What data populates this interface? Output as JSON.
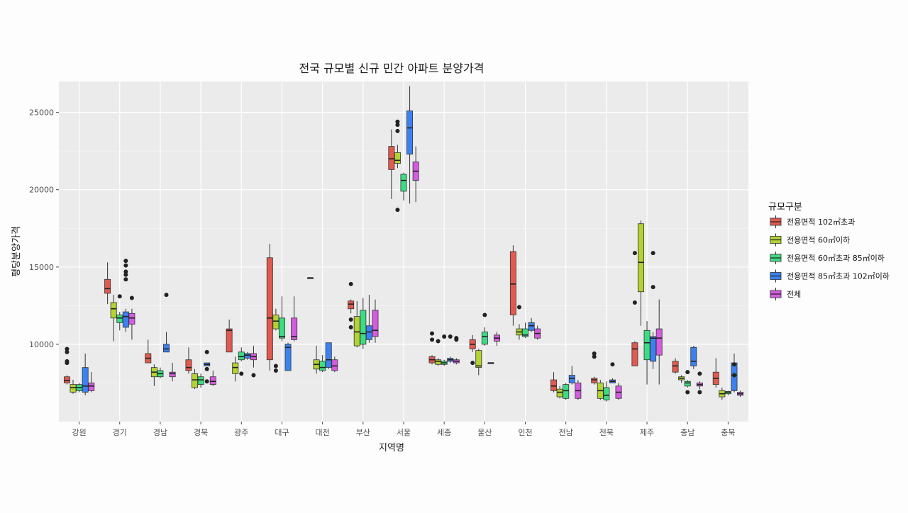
{
  "chart_data": {
    "type": "box",
    "title": "전국 규모별 신규 민간 아파트 분양가격",
    "xlabel": "지역명",
    "ylabel": "평당분양가격",
    "ylim": [
      5000,
      27000
    ],
    "yticks": [
      10000,
      15000,
      20000,
      25000
    ],
    "grid": true,
    "legend": {
      "title": "규모구분",
      "placement": "right"
    },
    "categories": [
      "강원",
      "경기",
      "경남",
      "경북",
      "광주",
      "대구",
      "대전",
      "부산",
      "서울",
      "세종",
      "울산",
      "인천",
      "전남",
      "전북",
      "제주",
      "충남",
      "충북"
    ],
    "series": [
      {
        "name": "전용면적 102㎡초과",
        "color": "#e05a4f",
        "boxes": [
          {
            "lo": 7400,
            "q1": 7500,
            "med": 7650,
            "q3": 7900,
            "hi": 8000,
            "out": [
              8800,
              8900,
              9500,
              9700
            ]
          },
          {
            "lo": 12600,
            "q1": 13300,
            "med": 13600,
            "q3": 14200,
            "hi": 15300,
            "out": []
          },
          {
            "lo": 8800,
            "q1": 8800,
            "med": 9100,
            "q3": 9400,
            "hi": 10300,
            "out": []
          },
          {
            "lo": 8100,
            "q1": 8300,
            "med": 8500,
            "q3": 9000,
            "hi": 9800,
            "out": []
          },
          {
            "lo": 9500,
            "q1": 9500,
            "med": 10900,
            "q3": 11000,
            "hi": 11600,
            "out": []
          },
          {
            "lo": 8300,
            "q1": 9000,
            "med": 11700,
            "q3": 15600,
            "hi": 16500,
            "out": []
          },
          {
            "lo": 14300,
            "q1": 14300,
            "med": 14300,
            "q3": 14300,
            "hi": 14300,
            "out": []
          },
          {
            "lo": 12000,
            "q1": 12300,
            "med": 12600,
            "q3": 12800,
            "hi": 12900,
            "out": [
              11100,
              11600,
              13900
            ]
          },
          {
            "lo": 19400,
            "q1": 21300,
            "med": 22000,
            "q3": 22800,
            "hi": 23900,
            "out": []
          },
          {
            "lo": 8700,
            "q1": 8800,
            "med": 9000,
            "q3": 9200,
            "hi": 9300,
            "out": [
              10300,
              10700
            ]
          },
          {
            "lo": 9500,
            "q1": 9700,
            "med": 10000,
            "q3": 10300,
            "hi": 10600,
            "out": [
              8800
            ]
          },
          {
            "lo": 11200,
            "q1": 11900,
            "med": 13900,
            "q3": 16000,
            "hi": 16400,
            "out": []
          },
          {
            "lo": 6900,
            "q1": 7000,
            "med": 7300,
            "q3": 7700,
            "hi": 8200,
            "out": []
          },
          {
            "lo": 7400,
            "q1": 7500,
            "med": 7700,
            "q3": 7800,
            "hi": 7900,
            "out": [
              9200,
              9400
            ]
          },
          {
            "lo": 8600,
            "q1": 8600,
            "med": 9700,
            "q3": 10100,
            "hi": 10200,
            "out": [
              12700,
              15900
            ]
          },
          {
            "lo": 8100,
            "q1": 8200,
            "med": 8600,
            "q3": 8900,
            "hi": 9100,
            "out": []
          },
          {
            "lo": 7200,
            "q1": 7400,
            "med": 7800,
            "q3": 8200,
            "hi": 9100,
            "out": []
          }
        ]
      },
      {
        "name": "전용면적 60㎡이하",
        "color": "#b3d233",
        "boxes": [
          {
            "lo": 6800,
            "q1": 6900,
            "med": 7200,
            "q3": 7400,
            "hi": 7700,
            "out": []
          },
          {
            "lo": 10200,
            "q1": 11700,
            "med": 12300,
            "q3": 12700,
            "hi": 13200,
            "out": []
          },
          {
            "lo": 7300,
            "q1": 7900,
            "med": 8200,
            "q3": 8500,
            "hi": 8700,
            "out": []
          },
          {
            "lo": 7100,
            "q1": 7200,
            "med": 7700,
            "q3": 8100,
            "hi": 8400,
            "out": []
          },
          {
            "lo": 7600,
            "q1": 8100,
            "med": 8500,
            "q3": 8800,
            "hi": 9200,
            "out": []
          },
          {
            "lo": 10900,
            "q1": 11000,
            "med": 11500,
            "q3": 11900,
            "hi": 12300,
            "out": [
              8300,
              8600
            ]
          },
          {
            "lo": 8100,
            "q1": 8400,
            "med": 8700,
            "q3": 9000,
            "hi": 9900,
            "out": []
          },
          {
            "lo": 9800,
            "q1": 9900,
            "med": 10800,
            "q3": 11800,
            "hi": 12800,
            "out": []
          },
          {
            "lo": 21400,
            "q1": 21700,
            "med": 21900,
            "q3": 22400,
            "hi": 22900,
            "out": [
              18700,
              23800,
              24200,
              24400
            ]
          },
          {
            "lo": 8600,
            "q1": 8700,
            "med": 8900,
            "q3": 9000,
            "hi": 9100,
            "out": [
              10200
            ]
          },
          {
            "lo": 8000,
            "q1": 8500,
            "med": 8600,
            "q3": 9600,
            "hi": 9700,
            "out": []
          },
          {
            "lo": 10300,
            "q1": 10600,
            "med": 10800,
            "q3": 11000,
            "hi": 11300,
            "out": [
              12400
            ]
          },
          {
            "lo": 6500,
            "q1": 6600,
            "med": 6900,
            "q3": 7100,
            "hi": 7300,
            "out": []
          },
          {
            "lo": 6400,
            "q1": 6500,
            "med": 7000,
            "q3": 7500,
            "hi": 7700,
            "out": []
          },
          {
            "lo": 11200,
            "q1": 13400,
            "med": 15300,
            "q3": 17800,
            "hi": 18000,
            "out": []
          },
          {
            "lo": 7500,
            "q1": 7700,
            "med": 7800,
            "q3": 7900,
            "hi": 8000,
            "out": []
          },
          {
            "lo": 6400,
            "q1": 6600,
            "med": 6800,
            "q3": 7000,
            "hi": 7200,
            "out": []
          }
        ]
      },
      {
        "name": "전용면적 60㎡초과 85㎡이하",
        "color": "#3ddc84",
        "boxes": [
          {
            "lo": 6900,
            "q1": 7000,
            "med": 7200,
            "q3": 7400,
            "hi": 7500,
            "out": []
          },
          {
            "lo": 10900,
            "q1": 11400,
            "med": 11700,
            "q3": 11900,
            "hi": 12100,
            "out": [
              13100
            ]
          },
          {
            "lo": 7800,
            "q1": 7900,
            "med": 8100,
            "q3": 8300,
            "hi": 8500,
            "out": []
          },
          {
            "lo": 7200,
            "q1": 7400,
            "med": 7700,
            "q3": 7900,
            "hi": 8100,
            "out": []
          },
          {
            "lo": 8900,
            "q1": 9000,
            "med": 9200,
            "q3": 9500,
            "hi": 9800,
            "out": [
              8100
            ]
          },
          {
            "lo": 10200,
            "q1": 10400,
            "med": 10500,
            "q3": 11700,
            "hi": 13100,
            "out": []
          },
          {
            "lo": 8200,
            "q1": 8300,
            "med": 8500,
            "q3": 8900,
            "hi": 9300,
            "out": []
          },
          {
            "lo": 9700,
            "q1": 10000,
            "med": 10700,
            "q3": 12200,
            "hi": 13000,
            "out": []
          },
          {
            "lo": 19300,
            "q1": 19900,
            "med": 20600,
            "q3": 21000,
            "hi": 21100,
            "out": []
          },
          {
            "lo": 8600,
            "q1": 8700,
            "med": 8800,
            "q3": 8900,
            "hi": 9000,
            "out": [
              10500
            ]
          },
          {
            "lo": 9900,
            "q1": 10000,
            "med": 10500,
            "q3": 10800,
            "hi": 11100,
            "out": [
              11900
            ]
          },
          {
            "lo": 10400,
            "q1": 10500,
            "med": 10600,
            "q3": 11000,
            "hi": 11400,
            "out": []
          },
          {
            "lo": 6400,
            "q1": 6500,
            "med": 7000,
            "q3": 7400,
            "hi": 7500,
            "out": []
          },
          {
            "lo": 6300,
            "q1": 6400,
            "med": 6700,
            "q3": 7200,
            "hi": 7600,
            "out": []
          },
          {
            "lo": 7400,
            "q1": 9000,
            "med": 10100,
            "q3": 10900,
            "hi": 11500,
            "out": []
          },
          {
            "lo": 7200,
            "q1": 7300,
            "med": 7500,
            "q3": 7600,
            "hi": 7700,
            "out": [
              6900,
              8200
            ]
          },
          {
            "lo": 6700,
            "q1": 6800,
            "med": 6900,
            "q3": 6950,
            "hi": 7000,
            "out": []
          }
        ]
      },
      {
        "name": "전용면적 85㎡초과 102㎡이하",
        "color": "#3b82f0",
        "boxes": [
          {
            "lo": 6700,
            "q1": 6900,
            "med": 7300,
            "q3": 8500,
            "hi": 9400,
            "out": []
          },
          {
            "lo": 10800,
            "q1": 11100,
            "med": 11800,
            "q3": 12100,
            "hi": 12300,
            "out": [
              14200,
              14500,
              14700,
              15100,
              15400
            ]
          },
          {
            "lo": 9500,
            "q1": 9500,
            "med": 9700,
            "q3": 10000,
            "hi": 10800,
            "out": [
              13200
            ]
          },
          {
            "lo": 8600,
            "q1": 8600,
            "med": 8700,
            "q3": 8800,
            "hi": 8800,
            "out": [
              7600,
              8400,
              9500
            ]
          },
          {
            "lo": 9000,
            "q1": 9100,
            "med": 9300,
            "q3": 9400,
            "hi": 9500,
            "out": []
          },
          {
            "lo": 8300,
            "q1": 8300,
            "med": 9800,
            "q3": 10000,
            "hi": 10100,
            "out": []
          },
          {
            "lo": 8400,
            "q1": 8500,
            "med": 9000,
            "q3": 10100,
            "hi": 10100,
            "out": []
          },
          {
            "lo": 10100,
            "q1": 10300,
            "med": 10800,
            "q3": 11200,
            "hi": 13200,
            "out": []
          },
          {
            "lo": 19100,
            "q1": 22300,
            "med": 24000,
            "q3": 25100,
            "hi": 26700,
            "out": []
          },
          {
            "lo": 8800,
            "q1": 8900,
            "med": 9000,
            "q3": 9100,
            "hi": 9200,
            "out": [
              10500
            ]
          },
          {
            "lo": 8800,
            "q1": 8800,
            "med": 8800,
            "q3": 8800,
            "hi": 8800,
            "out": []
          },
          {
            "lo": 10800,
            "q1": 10900,
            "med": 11200,
            "q3": 11400,
            "hi": 11700,
            "out": []
          },
          {
            "lo": 7400,
            "q1": 7500,
            "med": 7800,
            "q3": 8000,
            "hi": 8600,
            "out": []
          },
          {
            "lo": 7500,
            "q1": 7500,
            "med": 7600,
            "q3": 7700,
            "hi": 7800,
            "out": [
              8700
            ]
          },
          {
            "lo": 8400,
            "q1": 8900,
            "med": 10400,
            "q3": 10500,
            "hi": 10800,
            "out": [
              13700,
              15900
            ]
          },
          {
            "lo": 8400,
            "q1": 8600,
            "med": 8900,
            "q3": 9800,
            "hi": 9900,
            "out": []
          },
          {
            "lo": 6900,
            "q1": 7000,
            "med": 8000,
            "q3": 8800,
            "hi": 9400,
            "out": [
              8000,
              8700
            ]
          }
        ]
      },
      {
        "name": "전체",
        "color": "#d45ce0",
        "boxes": [
          {
            "lo": 6900,
            "q1": 7000,
            "med": 7300,
            "q3": 7500,
            "hi": 8200,
            "out": []
          },
          {
            "lo": 10300,
            "q1": 11300,
            "med": 11700,
            "q3": 12000,
            "hi": 12300,
            "out": [
              13000
            ]
          },
          {
            "lo": 7600,
            "q1": 7900,
            "med": 8100,
            "q3": 8200,
            "hi": 8800,
            "out": []
          },
          {
            "lo": 7300,
            "q1": 7400,
            "med": 7600,
            "q3": 7900,
            "hi": 8300,
            "out": []
          },
          {
            "lo": 8500,
            "q1": 9000,
            "med": 9200,
            "q3": 9400,
            "hi": 9900,
            "out": [
              8000
            ]
          },
          {
            "lo": 10200,
            "q1": 10300,
            "med": 10500,
            "q3": 11700,
            "hi": 13100,
            "out": []
          },
          {
            "lo": 8200,
            "q1": 8300,
            "med": 8600,
            "q3": 9000,
            "hi": 9200,
            "out": []
          },
          {
            "lo": 10100,
            "q1": 10500,
            "med": 10900,
            "q3": 12200,
            "hi": 12900,
            "out": []
          },
          {
            "lo": 19200,
            "q1": 20600,
            "med": 21200,
            "q3": 21800,
            "hi": 22800,
            "out": []
          },
          {
            "lo": 8700,
            "q1": 8800,
            "med": 8900,
            "q3": 9000,
            "hi": 9100,
            "out": [
              10300,
              10400
            ]
          },
          {
            "lo": 9900,
            "q1": 10200,
            "med": 10400,
            "q3": 10600,
            "hi": 10800,
            "out": []
          },
          {
            "lo": 10300,
            "q1": 10400,
            "med": 10700,
            "q3": 11000,
            "hi": 11200,
            "out": []
          },
          {
            "lo": 6400,
            "q1": 6500,
            "med": 7000,
            "q3": 7500,
            "hi": 7700,
            "out": []
          },
          {
            "lo": 6400,
            "q1": 6500,
            "med": 6900,
            "q3": 7300,
            "hi": 7500,
            "out": []
          },
          {
            "lo": 7400,
            "q1": 9300,
            "med": 10400,
            "q3": 11000,
            "hi": 12900,
            "out": []
          },
          {
            "lo": 7100,
            "q1": 7300,
            "med": 7400,
            "q3": 7500,
            "hi": 7600,
            "out": [
              6900,
              8100
            ]
          },
          {
            "lo": 6600,
            "q1": 6700,
            "med": 6800,
            "q3": 6900,
            "hi": 7000,
            "out": []
          }
        ]
      }
    ]
  }
}
